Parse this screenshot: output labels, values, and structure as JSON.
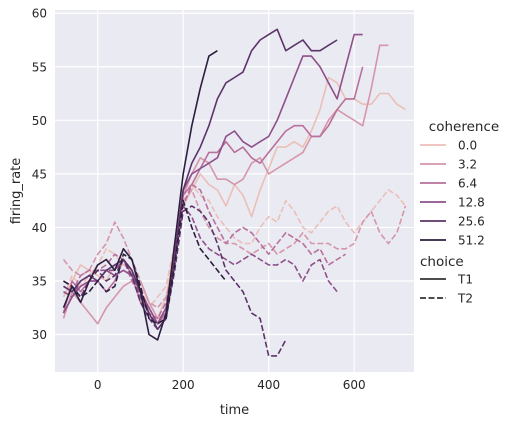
{
  "chart_data": {
    "type": "line",
    "title": "",
    "xlabel": "time",
    "ylabel": "firing_rate",
    "xlim": [
      -100,
      740
    ],
    "ylim": [
      26.5,
      60.3
    ],
    "xticks": [
      0,
      200,
      400,
      600
    ],
    "yticks": [
      30,
      35,
      40,
      45,
      50,
      55,
      60
    ],
    "grid": true,
    "legend_placement": "right",
    "legend": {
      "hue_title": "coherence",
      "hue_entries": [
        {
          "label": "0.0",
          "color": "#ebbfb8"
        },
        {
          "label": "3.2",
          "color": "#d596aa"
        },
        {
          "label": "6.4",
          "color": "#b9709c"
        },
        {
          "label": "12.8",
          "color": "#8f5089"
        },
        {
          "label": "25.6",
          "color": "#5c3469"
        },
        {
          "label": "51.2",
          "color": "#2d1e3e"
        }
      ],
      "style_title": "choice",
      "style_entries": [
        {
          "label": "T1",
          "dash": "solid"
        },
        {
          "label": "T2",
          "dash": "dashed"
        }
      ]
    },
    "series": [
      {
        "coherence": "0.0",
        "choice": "T1",
        "x": [
          -80,
          -60,
          -40,
          -20,
          0,
          20,
          40,
          60,
          80,
          100,
          120,
          140,
          160,
          180,
          200,
          220,
          240,
          260,
          280,
          300,
          320,
          340,
          360,
          380,
          400,
          420,
          440,
          460,
          480,
          500,
          520,
          540,
          560,
          580,
          600,
          620,
          640,
          660,
          680,
          700,
          720
        ],
        "y": [
          33.5,
          35,
          36.5,
          36,
          35.5,
          35,
          36.5,
          37,
          36,
          34,
          32,
          31.5,
          33.5,
          38,
          42,
          43.5,
          45,
          44,
          43.5,
          42,
          44,
          43,
          41,
          43.5,
          45.5,
          47.5,
          47.5,
          48,
          47.5,
          49,
          51,
          54,
          53.5,
          52,
          52,
          51.5,
          51.5,
          52.5,
          52.5,
          51.5,
          51
        ]
      },
      {
        "coherence": "0.0",
        "choice": "T2",
        "x": [
          -80,
          -60,
          -40,
          -20,
          0,
          20,
          40,
          60,
          80,
          100,
          120,
          140,
          160,
          180,
          200,
          220,
          240,
          260,
          280,
          300,
          320,
          340,
          360,
          380,
          400,
          420,
          440,
          460,
          480,
          500,
          520,
          540,
          560,
          580,
          600,
          620,
          640,
          660,
          680,
          700,
          720
        ],
        "y": [
          33.5,
          35.5,
          34.5,
          35.5,
          36.5,
          38,
          37.5,
          36.5,
          36,
          34.5,
          32.5,
          33.5,
          34.5,
          38.5,
          43.5,
          44,
          43,
          42.5,
          41,
          40,
          39,
          38.5,
          38.5,
          40,
          41,
          40.5,
          42.5,
          41.5,
          40,
          39.5,
          40.5,
          41.5,
          42,
          40.5,
          39.5,
          40.5,
          41.5,
          42.5,
          43.5,
          43,
          42
        ]
      },
      {
        "coherence": "3.2",
        "choice": "T1",
        "x": [
          -80,
          -60,
          -40,
          -20,
          0,
          20,
          40,
          60,
          80,
          100,
          120,
          140,
          160,
          180,
          200,
          220,
          240,
          260,
          280,
          300,
          320,
          340,
          360,
          380,
          400,
          420,
          440,
          460,
          480,
          500,
          520,
          540,
          560,
          580,
          600,
          620,
          640,
          660,
          680
        ],
        "y": [
          31.5,
          34,
          33,
          32,
          31,
          32.5,
          33.5,
          34.5,
          35,
          35,
          33,
          31.5,
          32,
          37,
          43,
          45,
          46.5,
          46,
          44.5,
          44.5,
          44,
          44.5,
          46,
          46.5,
          45,
          45.5,
          46,
          46.5,
          47,
          48.5,
          48.5,
          50,
          51,
          50.5,
          50,
          49.5,
          53,
          57,
          57
        ]
      },
      {
        "coherence": "3.2",
        "choice": "T2",
        "x": [
          -80,
          -60,
          -40,
          -20,
          0,
          20,
          40,
          60,
          80,
          100,
          120,
          140,
          160,
          180,
          200,
          220,
          240,
          260,
          280,
          300,
          320,
          340,
          360,
          380,
          400,
          420,
          440,
          460,
          480,
          500,
          520,
          540,
          560,
          580,
          600,
          620,
          640,
          660,
          680,
          700,
          720
        ],
        "y": [
          37,
          36,
          35.5,
          36,
          37.5,
          38.5,
          40.5,
          39,
          37,
          35,
          33,
          32.5,
          33.5,
          36.5,
          42.5,
          43.5,
          41.5,
          40,
          39,
          38.5,
          38.5,
          38,
          37.5,
          38,
          38.5,
          37.5,
          38,
          38.5,
          39.5,
          38.5,
          38.5,
          38.5,
          38,
          38,
          38.5,
          40.5,
          41.5,
          39.5,
          38.5,
          39.5,
          42
        ]
      },
      {
        "coherence": "6.4",
        "choice": "T1",
        "x": [
          -80,
          -60,
          -40,
          -20,
          0,
          20,
          40,
          60,
          80,
          100,
          120,
          140,
          160,
          180,
          200,
          220,
          240,
          260,
          280,
          300,
          320,
          340,
          360,
          380,
          400,
          420,
          440,
          460,
          480,
          500,
          520,
          540,
          560,
          580,
          600,
          620
        ],
        "y": [
          32,
          35,
          34,
          35,
          35,
          34,
          35,
          37,
          35.5,
          33,
          32.5,
          31,
          32,
          37.5,
          43,
          44,
          45.5,
          47,
          47,
          48,
          47,
          47.5,
          46.5,
          46,
          47,
          48,
          49,
          49.5,
          49.5,
          48.5,
          48.5,
          49.5,
          51,
          52,
          52,
          55
        ]
      },
      {
        "coherence": "6.4",
        "choice": "T2",
        "x": [
          -80,
          -60,
          -40,
          -20,
          0,
          20,
          40,
          60,
          80,
          100,
          120,
          140,
          160,
          180,
          200,
          220,
          240,
          260,
          280,
          300,
          320,
          340,
          360,
          380,
          400,
          420,
          440,
          460,
          480,
          500,
          520,
          540,
          560,
          580
        ],
        "y": [
          34.5,
          34,
          35.5,
          36,
          36,
          36.5,
          37.5,
          37,
          35,
          33.5,
          32,
          31.5,
          33,
          37,
          42,
          44,
          43.5,
          41.5,
          40,
          38.5,
          39.5,
          40,
          39.5,
          38.5,
          37.5,
          38.5,
          39.5,
          39,
          38.5,
          37.5,
          38,
          36.5,
          37,
          37.5
        ]
      },
      {
        "coherence": "12.8",
        "choice": "T1",
        "x": [
          -80,
          -60,
          -40,
          -20,
          0,
          20,
          40,
          60,
          80,
          100,
          120,
          140,
          160,
          180,
          200,
          220,
          240,
          260,
          280,
          300,
          320,
          340,
          360,
          380,
          400,
          420,
          440,
          460,
          480,
          500,
          520,
          540,
          560,
          580,
          600,
          620
        ],
        "y": [
          32,
          33.5,
          34.5,
          35,
          35,
          36,
          35.5,
          36,
          35.5,
          34,
          32.5,
          31,
          32.5,
          37.5,
          43.5,
          45,
          45.5,
          46,
          46.5,
          48.5,
          49,
          48,
          47.5,
          48,
          48.5,
          50,
          52,
          54,
          56,
          56,
          55,
          53.5,
          52,
          55,
          58,
          58
        ]
      },
      {
        "coherence": "12.8",
        "choice": "T2",
        "x": [
          -80,
          -60,
          -40,
          -20,
          0,
          20,
          40,
          60,
          80,
          100,
          120,
          140,
          160,
          180,
          200,
          220,
          240,
          260,
          280,
          300,
          320,
          340,
          360,
          380,
          400,
          420,
          440,
          460,
          480,
          500,
          520,
          540,
          560
        ],
        "y": [
          34,
          33.5,
          35,
          35.5,
          36,
          36,
          36,
          37,
          36,
          33.5,
          32,
          31,
          32.5,
          37,
          42,
          41,
          39,
          38,
          37.5,
          37,
          36.5,
          37,
          37.5,
          37,
          36.5,
          36.5,
          37,
          36.5,
          35,
          36.5,
          37,
          35,
          34
        ]
      },
      {
        "coherence": "25.6",
        "choice": "T1",
        "x": [
          -80,
          -60,
          -40,
          -20,
          0,
          20,
          40,
          60,
          80,
          100,
          120,
          140,
          160,
          180,
          200,
          220,
          240,
          260,
          280,
          300,
          320,
          340,
          360,
          380,
          400,
          420,
          440,
          460,
          480,
          500,
          520,
          540,
          560
        ],
        "y": [
          34.5,
          34,
          35,
          35.5,
          35,
          36,
          36.5,
          37,
          36,
          34,
          32,
          30.5,
          31.5,
          37,
          43.5,
          46,
          47.5,
          49.5,
          52,
          53.5,
          54,
          54.5,
          56.5,
          57.5,
          58,
          58.5,
          56.5,
          57,
          57.5,
          56.5,
          56.5,
          57,
          57.5
        ]
      },
      {
        "coherence": "25.6",
        "choice": "T2",
        "x": [
          -80,
          -60,
          -40,
          -20,
          0,
          20,
          40,
          60,
          80,
          100,
          120,
          140,
          160,
          180,
          200,
          220,
          240,
          260,
          280,
          300,
          320,
          340,
          360,
          380,
          400,
          420,
          440
        ],
        "y": [
          35,
          34.5,
          33.5,
          35,
          36,
          35,
          35.5,
          37,
          35.5,
          33,
          31.5,
          30.5,
          31.5,
          36,
          41.5,
          42,
          41.5,
          40.5,
          38.5,
          36,
          35,
          34,
          32,
          31.5,
          28,
          28,
          29.5
        ]
      },
      {
        "coherence": "51.2",
        "choice": "T1",
        "x": [
          -80,
          -60,
          -40,
          -20,
          0,
          20,
          40,
          60,
          80,
          100,
          120,
          140,
          160,
          180,
          200,
          220,
          240,
          260,
          280
        ],
        "y": [
          32.5,
          34.5,
          33,
          35,
          36.5,
          37,
          36,
          38,
          37,
          34,
          30,
          29.5,
          32,
          38.5,
          45,
          49.5,
          53,
          56,
          56.5
        ]
      },
      {
        "coherence": "51.2",
        "choice": "T2",
        "x": [
          -80,
          -60,
          -40,
          -20,
          0,
          20,
          40,
          60,
          80,
          100,
          120,
          140,
          160,
          180,
          200,
          220,
          240,
          260,
          280,
          300
        ],
        "y": [
          35,
          34.5,
          33.5,
          34,
          35,
          34,
          34.5,
          37.5,
          37,
          34.5,
          31.5,
          31,
          31.5,
          36.5,
          42.5,
          40,
          38,
          37,
          36,
          35
        ]
      }
    ]
  }
}
